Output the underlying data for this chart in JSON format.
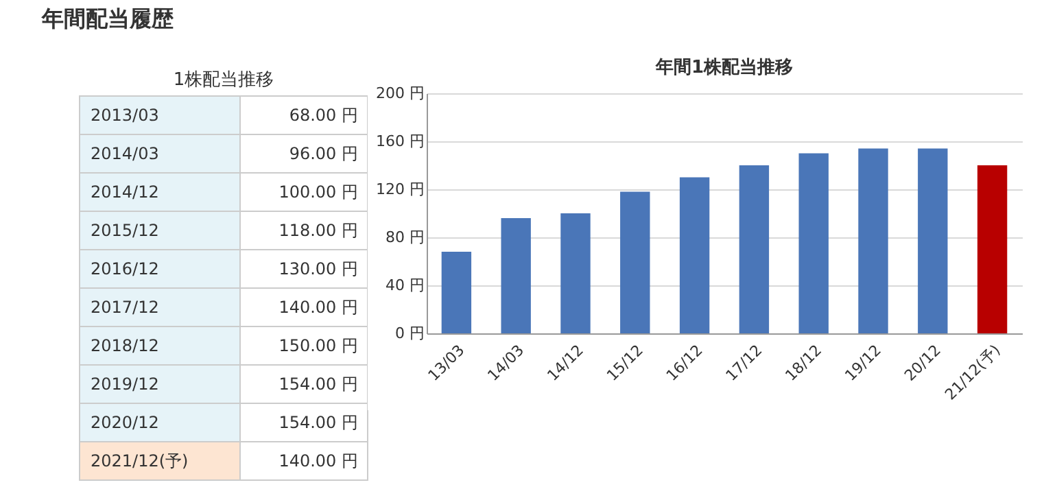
{
  "chart_data": [
    {
      "type": "other",
      "title": "年間配当履歴",
      "subtitle": "1株配当推移",
      "categories": [
        "2013/03",
        "2014/03",
        "2014/12",
        "2015/12",
        "2016/12",
        "2017/12",
        "2018/12",
        "2019/12",
        "2020/12",
        "2021/12(予)"
      ],
      "value_labels": [
        "68.00 円",
        "96.00 円",
        "100.00 円",
        "118.00 円",
        "130.00 円",
        "140.00 円",
        "150.00 円",
        "154.00 円",
        "154.00 円",
        "140.00 円"
      ],
      "colors": [
        "#e6f3f8",
        "#e6f3f8",
        "#e6f3f8",
        "#e6f3f8",
        "#e6f3f8",
        "#e6f3f8",
        "#e6f3f8",
        "#e6f3f8",
        "#e6f3f8",
        "#fde5d2"
      ]
    },
    {
      "type": "bar",
      "title": "年間1株配当推移",
      "categories": [
        "13/03",
        "14/03",
        "14/12",
        "15/12",
        "16/12",
        "17/12",
        "18/12",
        "19/12",
        "20/12",
        "21/12(予)"
      ],
      "values": [
        68,
        96,
        100,
        118,
        130,
        140,
        150,
        154,
        154,
        140
      ],
      "colors": [
        "#4a76b8",
        "#4a76b8",
        "#4a76b8",
        "#4a76b8",
        "#4a76b8",
        "#4a76b8",
        "#4a76b8",
        "#4a76b8",
        "#4a76b8",
        "#b80000"
      ],
      "ylim": [
        0,
        200
      ],
      "yticks": [
        {
          "value": 0,
          "label": "0 円"
        },
        {
          "value": 40,
          "label": "40 円"
        },
        {
          "value": 80,
          "label": "80 円"
        },
        {
          "value": 120,
          "label": "120 円"
        },
        {
          "value": 160,
          "label": "160 円"
        },
        {
          "value": 200,
          "label": "200 円"
        }
      ],
      "grid": true,
      "legend": false
    }
  ]
}
